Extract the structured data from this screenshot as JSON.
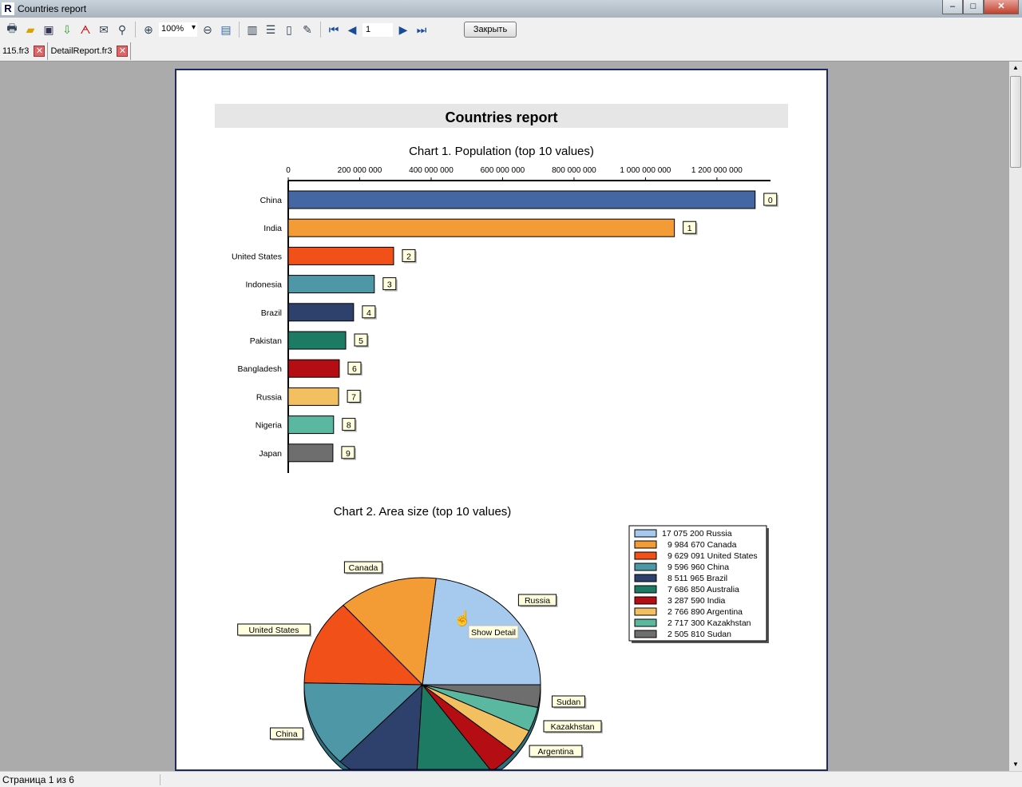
{
  "window": {
    "title": "Countries report",
    "minimize": "‒",
    "maximize": "□",
    "close": "✕"
  },
  "toolbar": {
    "zoom": "100%",
    "page": "1",
    "close_label": "Закрыть",
    "icons": [
      "print-icon",
      "open-icon",
      "save-icon",
      "export-icon",
      "pdf-icon",
      "email-icon",
      "find-icon",
      "zoom-in-icon",
      "zoom-out-icon",
      "fullscreen-icon",
      "page-settings-icon",
      "outline-icon",
      "thumbnails-icon",
      "edit-icon",
      "first-page-icon",
      "prev-page-icon",
      "next-page-icon",
      "last-page-icon"
    ]
  },
  "tabs": [
    {
      "label": "115.fr3"
    },
    {
      "label": "DetailReport.fr3"
    }
  ],
  "report": {
    "title": "Countries report",
    "tooltip": "Show Detail"
  },
  "chart_data": [
    {
      "type": "bar",
      "orientation": "horizontal",
      "title": "Chart 1. Population (top 10 values)",
      "categories": [
        "China",
        "India",
        "United States",
        "Indonesia",
        "Brazil",
        "Pakistan",
        "Bangladesh",
        "Russia",
        "Nigeria",
        "Japan"
      ],
      "values": [
        1307000000,
        1081000000,
        295000000,
        241000000,
        183000000,
        161000000,
        143000000,
        141000000,
        127000000,
        125000000
      ],
      "data_labels": [
        "0",
        "1",
        "2",
        "3",
        "4",
        "5",
        "6",
        "7",
        "8",
        "9"
      ],
      "xticks": [
        "0",
        "200 000 000",
        "400 000 000",
        "600 000 000",
        "800 000 000",
        "1 000 000 000",
        "1 200 000 000"
      ],
      "xlim": [
        0,
        1350000000
      ],
      "axis_position": "top",
      "colors": [
        "#4466a2",
        "#f39c35",
        "#f25019",
        "#4e97a7",
        "#2d416c",
        "#1d7b63",
        "#b50d14",
        "#f2c060",
        "#5ab8a0",
        "#6e6e6e"
      ]
    },
    {
      "type": "pie",
      "title": "Chart 2. Area size (top 10 values)",
      "categories": [
        "Russia",
        "Canada",
        "United States",
        "China",
        "Brazil",
        "Australia",
        "India",
        "Argentina",
        "Kazakhstan",
        "Sudan"
      ],
      "values": [
        17075200,
        9984670,
        9629091,
        9596960,
        8511965,
        7686850,
        3287590,
        2766890,
        2717300,
        2505810
      ],
      "legend": [
        "17 075 200 Russia",
        "9 984 670 Canada",
        "9 629 091 United States",
        "9 596 960 China",
        "8 511 965 Brazil",
        "7 686 850 Australia",
        "3 287 590 India",
        "2 766 890 Argentina",
        "2 717 300 Kazakhstan",
        "2 505 810 Sudan"
      ],
      "legend_position": "top-right",
      "colors": [
        "#a6c9ee",
        "#f39c35",
        "#f25019",
        "#4e97a7",
        "#2d416c",
        "#1d7b63",
        "#b50d14",
        "#f2c060",
        "#5ab8a0",
        "#6e6e6e"
      ]
    }
  ],
  "status": {
    "page_info": "Страница 1 из 6"
  }
}
